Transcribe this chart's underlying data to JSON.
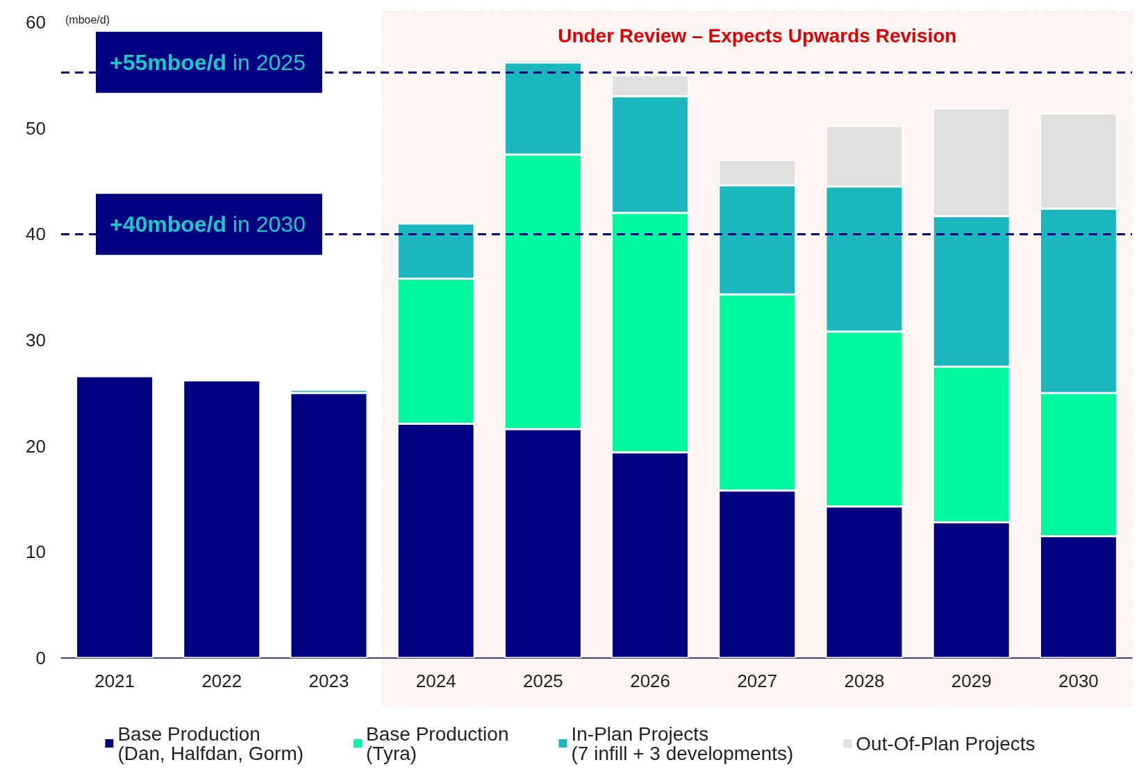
{
  "chart_data": {
    "type": "bar",
    "stacked": true,
    "ylabel": "(mboe/d)",
    "categories": [
      "2021",
      "2022",
      "2023",
      "2024",
      "2025",
      "2026",
      "2027",
      "2028",
      "2029",
      "2030"
    ],
    "series": [
      {
        "name": "Base Production\n(Dan, Halfdan, Gorm)",
        "color": "#000080",
        "values": [
          26.6,
          26.2,
          25.0,
          22.1,
          21.6,
          19.4,
          15.8,
          14.3,
          12.8,
          11.5
        ]
      },
      {
        "name": "Base Production\n(Tyra)",
        "color": "#00f8a0",
        "values": [
          null,
          null,
          null,
          13.7,
          25.9,
          22.6,
          18.5,
          16.5,
          14.7,
          13.5
        ]
      },
      {
        "name": "In-Plan Projects\n(7 infill + 3 developments)",
        "color": "#1ab8be",
        "values": [
          null,
          null,
          0.3,
          5.2,
          8.7,
          11.0,
          10.3,
          13.7,
          14.2,
          17.4
        ]
      },
      {
        "name": "Out-Of-Plan Projects",
        "color": "#e0e0e0",
        "values": [
          null,
          null,
          null,
          null,
          0.3,
          2.0,
          2.4,
          5.7,
          10.2,
          9.0
        ]
      }
    ],
    "ylim": [
      0,
      60
    ],
    "yticks": [
      0,
      10,
      20,
      30,
      40,
      50,
      60
    ],
    "grid": false,
    "legend": "bottom",
    "ref_lines": [
      {
        "axis": "y",
        "value": 55.3,
        "label": "+55mboe/d in 2025",
        "color": "#000080",
        "line_style": "dashed"
      },
      {
        "axis": "y",
        "value": 40,
        "label": "+40mboe/d in 2030",
        "color": "#000080",
        "line_style": "dashed"
      }
    ],
    "bands": [
      {
        "axis": "x",
        "from": "2024",
        "to": "2030",
        "label": "Under Review – Expects Upwards Revision",
        "color": "#e00000"
      }
    ]
  }
}
